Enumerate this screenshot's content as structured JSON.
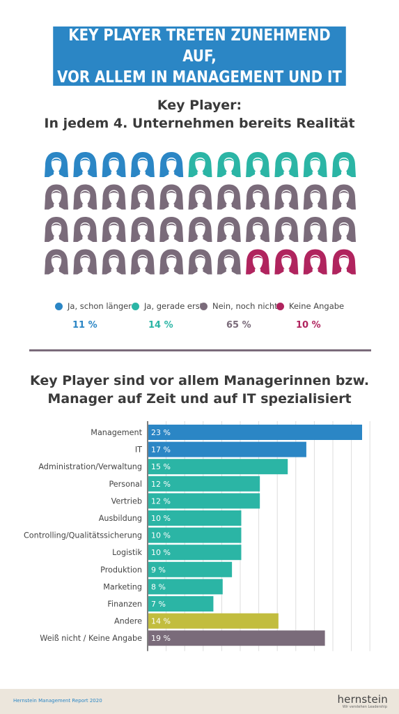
{
  "header": {
    "title_line1": "KEY PLAYER TRETEN ZUNEHMEND AUF,",
    "title_line2": "VOR ALLEM IN MANAGEMENT UND IT"
  },
  "section1": {
    "title_line1": "Key Player:",
    "title_line2": "In jedem 4. Unternehmen bereits Realität"
  },
  "section2": {
    "title_line1": "Key Player sind vor allem Managerinnen bzw.",
    "title_line2": "Manager auf Zeit und auf IT spezialisiert"
  },
  "chart_data": [
    {
      "type": "pictogram",
      "icons_total": 44,
      "series": [
        {
          "name": "Ja, schon länger",
          "value": 11,
          "label": "11 %",
          "icons": 5,
          "color": "#2b86c5"
        },
        {
          "name": "Ja, gerade erst",
          "value": 14,
          "label": "14 %",
          "icons": 6,
          "color": "#2bb5a5"
        },
        {
          "name": "Nein, noch nicht",
          "value": 65,
          "label": "65 %",
          "icons": 29,
          "color": "#7a6b7a"
        },
        {
          "name": "Keine Angabe",
          "value": 10,
          "label": "10 %",
          "icons": 4,
          "color": "#b0245e"
        }
      ]
    },
    {
      "type": "bar",
      "orientation": "horizontal",
      "xlim": [
        0,
        23
      ],
      "grid": true,
      "categories": [
        "Management",
        "IT",
        "Administration/Verwaltung",
        "Personal",
        "Vertrieb",
        "Ausbildung",
        "Controlling/Qualitätssicherung",
        "Logistik",
        "Produktion",
        "Marketing",
        "Finanzen",
        "Andere",
        "Weiß nicht / Keine Angabe"
      ],
      "values": [
        23,
        17,
        15,
        12,
        12,
        10,
        10,
        10,
        9,
        8,
        7,
        14,
        19
      ],
      "labels": [
        "23 %",
        "17 %",
        "15 %",
        "12 %",
        "12 %",
        "10 %",
        "10 %",
        "10 %",
        "9 %",
        "8 %",
        "7 %",
        "14 %",
        "19 %"
      ],
      "colors": [
        "#2b86c5",
        "#2b86c5",
        "#2bb5a5",
        "#2bb5a5",
        "#2bb5a5",
        "#2bb5a5",
        "#2bb5a5",
        "#2bb5a5",
        "#2bb5a5",
        "#2bb5a5",
        "#2bb5a5",
        "#c2bd3e",
        "#7a6b7a"
      ]
    }
  ],
  "footer": {
    "report": "Hernstein Management Report 2020",
    "brand": "hernstein",
    "tagline": "Wir verstehen Leadership"
  }
}
